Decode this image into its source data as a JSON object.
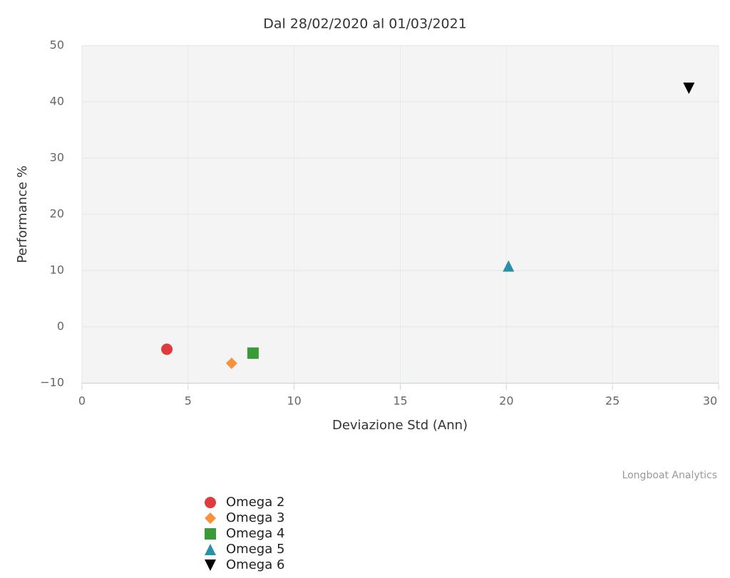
{
  "chart_data": {
    "type": "scatter",
    "title": "Dal 28/02/2020 al 01/03/2021",
    "x_label": "Deviazione Std (Ann)",
    "y_label": "Performance %",
    "credits": "Longboat Analytics",
    "xlim": [
      0,
      30
    ],
    "xticks": [
      0,
      5,
      10,
      15,
      20,
      25,
      30
    ],
    "ylim": [
      -10,
      50
    ],
    "yticks": [
      {
        "value": -10,
        "label": "−10"
      },
      0,
      10,
      20,
      30,
      40,
      50
    ],
    "grid": true,
    "series": [
      {
        "name": "Omega 2",
        "color": "#e0393e",
        "marker": "circle",
        "x": [
          4.0
        ],
        "values": [
          -4.0
        ]
      },
      {
        "name": "Omega 3",
        "color": "#f7923a",
        "marker": "diamond",
        "x": [
          7.05
        ],
        "values": [
          -6.5
        ]
      },
      {
        "name": "Omega 4",
        "color": "#3a9a3a",
        "marker": "square",
        "x": [
          8.06
        ],
        "values": [
          -4.7
        ]
      },
      {
        "name": "Omega 5",
        "color": "#2a8fa8",
        "marker": "triangle",
        "x": [
          20.1
        ],
        "values": [
          10.8
        ]
      },
      {
        "name": "Omega 6",
        "color": "#000000",
        "marker": "triangle-down",
        "x": [
          28.6
        ],
        "values": [
          42.4
        ]
      }
    ]
  }
}
